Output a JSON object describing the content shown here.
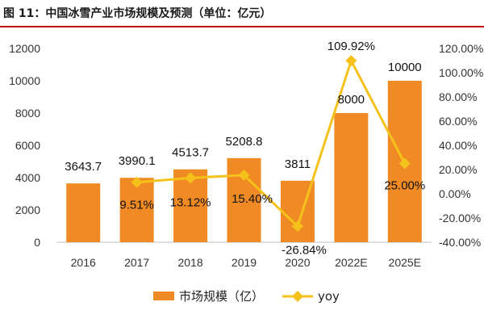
{
  "title": "图 11：中国冰雪产业市场规模及预测（单位：亿元）",
  "colors": {
    "bar": "#f08a24",
    "line": "#f5c11b",
    "title_rule": "#c00000"
  },
  "chart_data": {
    "type": "bar",
    "title": "图 11：中国冰雪产业市场规模及预测（单位：亿元）",
    "categories": [
      "2016",
      "2017",
      "2018",
      "2019",
      "2020",
      "2022E",
      "2025E"
    ],
    "series": [
      {
        "name": "市场规模（亿）",
        "type": "bar",
        "axis": "left",
        "values": [
          3643.7,
          3990.1,
          4513.7,
          5208.8,
          3811,
          8000,
          10000
        ],
        "labels": [
          "3643.7",
          "3990.1",
          "4513.7",
          "5208.8",
          "3811",
          "8000",
          "10000"
        ]
      },
      {
        "name": "yoy",
        "type": "line",
        "axis": "right",
        "values": [
          null,
          9.51,
          13.12,
          15.4,
          -26.84,
          109.92,
          25.0
        ],
        "labels": [
          "",
          "9.51%",
          "13.12%",
          "15.40%",
          "-26.84%",
          "109.92%",
          "25.00%"
        ]
      }
    ],
    "y_left": {
      "min": 0,
      "max": 12000,
      "step": 2000,
      "ticks": [
        "0",
        "2000",
        "4000",
        "6000",
        "8000",
        "10000",
        "12000"
      ]
    },
    "y_right": {
      "min": -40,
      "max": 120,
      "step": 20,
      "ticks": [
        "-40.00%",
        "-20.00%",
        "0.00%",
        "20.00%",
        "40.00%",
        "60.00%",
        "80.00%",
        "100.00%",
        "120.00%"
      ]
    },
    "legend": {
      "position": "bottom",
      "items": [
        "市场规模（亿）",
        "yoy"
      ]
    },
    "grid": false
  }
}
